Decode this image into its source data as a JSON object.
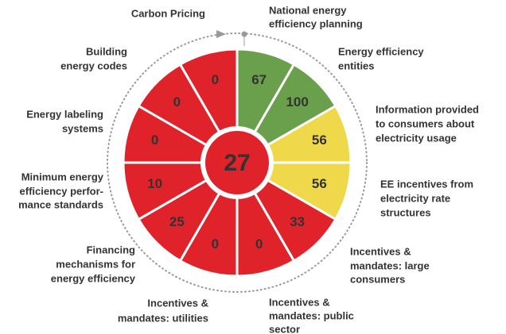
{
  "chart_data": {
    "type": "radial",
    "categories": [
      [
        "National energy",
        "efficiency planning"
      ],
      [
        "Energy efficiency",
        "entities"
      ],
      [
        "Information provided",
        "to consumers about",
        "electricity usage"
      ],
      [
        "EE incentives from",
        "electricity rate",
        "structures"
      ],
      [
        "Incentives &",
        "mandates: large",
        "consumers"
      ],
      [
        "Incentives &",
        "mandates: public",
        "sector"
      ],
      [
        "Incentives &",
        "mandates: utilities"
      ],
      [
        "Financing",
        "mechanisms for",
        "energy efficiency"
      ],
      [
        "Minimum energy",
        "efficiency perfor-",
        "mance standards"
      ],
      [
        "Energy labeling",
        "systems"
      ],
      [
        "Building",
        "energy codes"
      ],
      [
        "Carbon Pricing"
      ]
    ],
    "values": [
      67,
      100,
      56,
      56,
      33,
      0,
      0,
      25,
      10,
      0,
      0,
      0
    ],
    "colors": [
      "#6a9f4b",
      "#6a9f4b",
      "#efd94b",
      "#efd94b",
      "#e0222b",
      "#e0222b",
      "#e0222b",
      "#e0222b",
      "#e0222b",
      "#e0222b",
      "#e0222b",
      "#e0222b"
    ],
    "center_value": 27,
    "center_color": "#e0222b"
  }
}
